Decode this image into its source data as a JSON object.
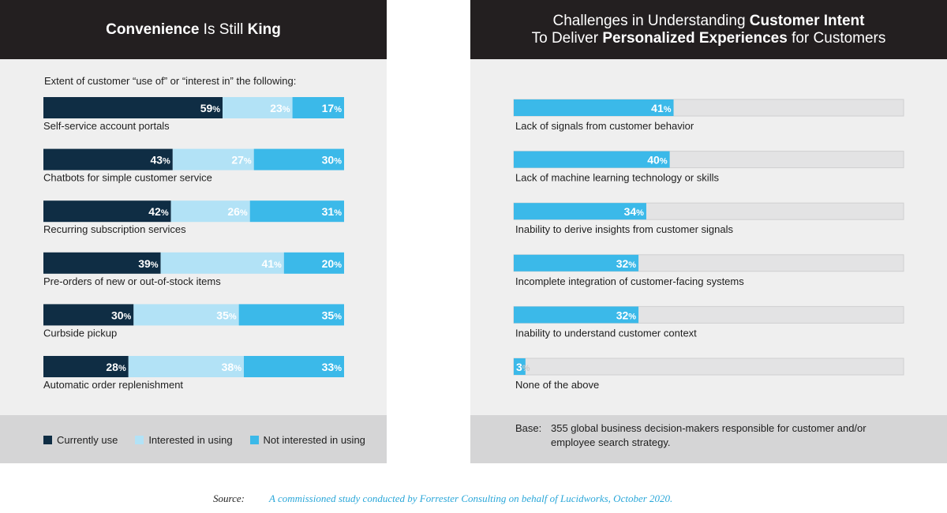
{
  "colors": {
    "header_bg": "#231f20",
    "panel_bg": "#efefef",
    "footer_bg": "#d5d5d6",
    "currently_use": "#0f2d44",
    "interested": "#b2e2f6",
    "not_interested": "#3bb9e9",
    "track": "#e3e3e4",
    "source_text": "#2aa7d9"
  },
  "left_panel": {
    "title_parts": [
      {
        "text": "Convenience",
        "bold": true
      },
      {
        "text": " Is Still ",
        "bold": false
      },
      {
        "text": "King",
        "bold": true
      }
    ],
    "subtitle": "Extent of customer “use of” or “interest in” the following:",
    "legend": [
      {
        "label": "Currently use",
        "color": "#0f2d44"
      },
      {
        "label": "Interested in using",
        "color": "#b2e2f6"
      },
      {
        "label": "Not interested in using",
        "color": "#3bb9e9"
      }
    ]
  },
  "right_panel": {
    "title_line1_parts": [
      {
        "text": "Challenges in Understanding ",
        "bold": false
      },
      {
        "text": "Customer Intent",
        "bold": true
      }
    ],
    "title_line2_parts": [
      {
        "text": "To Deliver ",
        "bold": false
      },
      {
        "text": "Personalized Experiences",
        "bold": true
      },
      {
        "text": " for Customers",
        "bold": false
      }
    ],
    "base_label": "Base:",
    "base_text": "355 global business decision-makers responsible for customer and/or employee search strategy."
  },
  "source": {
    "label": "Source:",
    "text": "A commissioned study conducted by Forrester Consulting  on behalf of Lucidworks, October 2020."
  },
  "chart_data": [
    {
      "type": "bar",
      "orientation": "horizontal",
      "stacked": true,
      "title": "Convenience Is Still King",
      "subtitle": "Extent of customer “use of” or “interest in” the following:",
      "unit": "%",
      "categories": [
        "Self-service account portals",
        "Chatbots for simple customer service",
        "Recurring subscription services",
        "Pre-orders of new or out-of-stock items",
        "Curbside pickup",
        "Automatic order replenishment"
      ],
      "series": [
        {
          "name": "Currently use",
          "values": [
            59,
            43,
            42,
            39,
            30,
            28
          ]
        },
        {
          "name": "Interested in using",
          "values": [
            23,
            27,
            26,
            41,
            35,
            38
          ]
        },
        {
          "name": "Not interested in using",
          "values": [
            17,
            30,
            31,
            20,
            35,
            33
          ]
        }
      ],
      "legend_position": "bottom"
    },
    {
      "type": "bar",
      "orientation": "horizontal",
      "stacked": false,
      "title": "Challenges in Understanding Customer Intent To Deliver Personalized Experiences for Customers",
      "unit": "%",
      "xlim": [
        0,
        100
      ],
      "categories": [
        "Lack of signals from customer behavior",
        "Lack of machine learning technology or skills",
        "Inability to derive insights from customer signals",
        "Incomplete integration of customer-facing systems",
        "Inability to understand customer context",
        "None of the above"
      ],
      "values": [
        41,
        40,
        34,
        32,
        32,
        3
      ]
    }
  ]
}
